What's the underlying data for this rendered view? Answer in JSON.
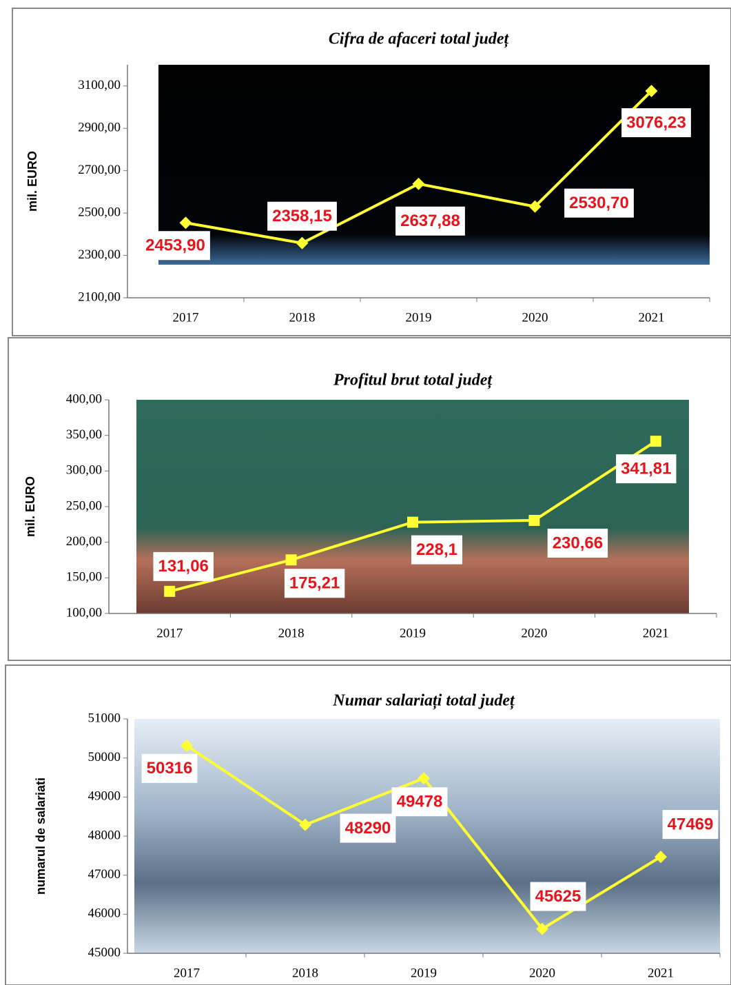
{
  "chart_data": [
    {
      "type": "line",
      "title": "Cifra de afaceri total județ",
      "y_label": "mil. EURO",
      "categories": [
        "2017",
        "2018",
        "2019",
        "2020",
        "2021"
      ],
      "values": [
        2453.9,
        2358.15,
        2637.88,
        2530.7,
        3076.23
      ],
      "value_labels": [
        "2453,90",
        "2358,15",
        "2637,88",
        "2530,70",
        "3076,23"
      ],
      "color": "#ffff33",
      "marker": "diamond",
      "ylim": [
        2100,
        3200
      ],
      "yticks": [
        {
          "value": 2100,
          "label": "2100,00"
        },
        {
          "value": 2300,
          "label": "2300,00"
        },
        {
          "value": 2500,
          "label": "2500,00"
        },
        {
          "value": 2700,
          "label": "2700,00"
        },
        {
          "value": 2900,
          "label": "2900,00"
        },
        {
          "value": 3100,
          "label": "3100,00"
        }
      ]
    },
    {
      "type": "line",
      "title": "Profitul brut total județ",
      "y_label": "mil. EURO",
      "categories": [
        "2017",
        "2018",
        "2019",
        "2020",
        "2021"
      ],
      "values": [
        131.06,
        175.21,
        228.1,
        230.66,
        341.81
      ],
      "value_labels": [
        "131,06",
        "175,21",
        "228,1",
        "230,66",
        "341,81"
      ],
      "color": "#ffff33",
      "marker": "square",
      "ylim": [
        100,
        400
      ],
      "yticks": [
        {
          "value": 100,
          "label": "100,00"
        },
        {
          "value": 150,
          "label": "150,00"
        },
        {
          "value": 200,
          "label": "200,00"
        },
        {
          "value": 250,
          "label": "250,00"
        },
        {
          "value": 300,
          "label": "300,00"
        },
        {
          "value": 350,
          "label": "350,00"
        },
        {
          "value": 400,
          "label": "400,00"
        }
      ]
    },
    {
      "type": "line",
      "title": "Numar salariați total județ",
      "y_label": "numarul de salariati",
      "categories": [
        "2017",
        "2018",
        "2019",
        "2020",
        "2021"
      ],
      "values": [
        50316,
        48290,
        49478,
        45625,
        47469
      ],
      "color": "#ffff33",
      "marker": "diamond",
      "ylim": [
        45000,
        51000
      ],
      "yticks": [
        45000,
        46000,
        47000,
        48000,
        49000,
        50000,
        51000
      ]
    }
  ]
}
